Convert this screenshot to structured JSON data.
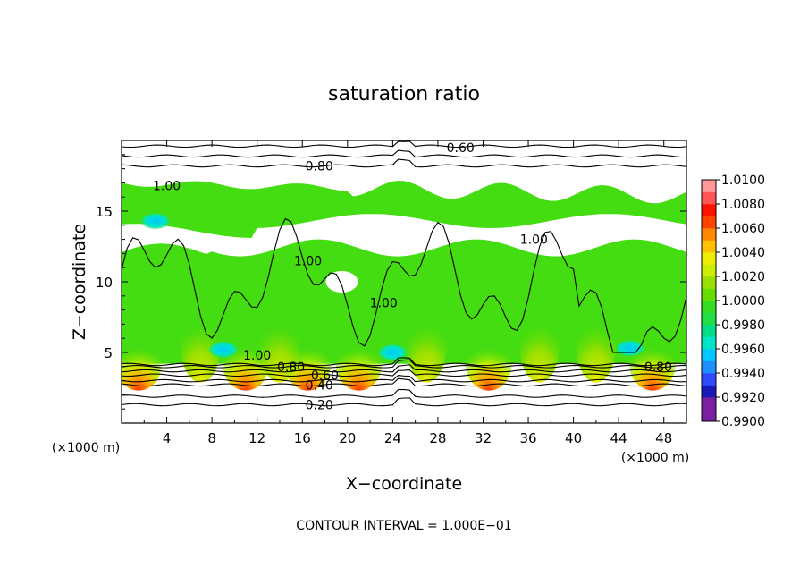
{
  "chart_data": {
    "type": "heatmap",
    "title": "saturation ratio",
    "xlabel": "X−coordinate",
    "ylabel": "Z−coordinate",
    "x_unit": "(×1000 m)",
    "y_unit": "(×1000 m)",
    "xlim": [
      0,
      50
    ],
    "ylim": [
      0,
      20
    ],
    "x_ticks": [
      4,
      8,
      12,
      16,
      20,
      24,
      28,
      32,
      36,
      40,
      44,
      48
    ],
    "y_ticks": [
      5,
      10,
      15
    ],
    "footer": "CONTOUR INTERVAL = 1.000E−01",
    "colorbar": {
      "min": 0.99,
      "max": 1.01,
      "labels": [
        "1.0100",
        "1.0080",
        "1.0060",
        "1.0040",
        "1.0020",
        "1.0000",
        "0.9980",
        "0.9960",
        "0.9940",
        "0.9920",
        "0.9900"
      ],
      "bands": [
        {
          "from": 0.99,
          "to": 0.992,
          "color": "#7a1fa2"
        },
        {
          "from": 0.992,
          "to": 0.993,
          "color": "#1a1ab8"
        },
        {
          "from": 0.993,
          "to": 0.994,
          "color": "#2e4bff"
        },
        {
          "from": 0.994,
          "to": 0.995,
          "color": "#1f8fff"
        },
        {
          "from": 0.995,
          "to": 0.996,
          "color": "#00c8ff"
        },
        {
          "from": 0.996,
          "to": 0.997,
          "color": "#00e5c8"
        },
        {
          "from": 0.997,
          "to": 0.998,
          "color": "#00dd88"
        },
        {
          "from": 0.998,
          "to": 0.999,
          "color": "#22dd44"
        },
        {
          "from": 0.999,
          "to": 1.0,
          "color": "#33dd22"
        },
        {
          "from": 1.0,
          "to": 1.001,
          "color": "#66dd00"
        },
        {
          "from": 1.001,
          "to": 1.002,
          "color": "#99e000"
        },
        {
          "from": 1.002,
          "to": 1.003,
          "color": "#ccee00"
        },
        {
          "from": 1.003,
          "to": 1.004,
          "color": "#eeee00"
        },
        {
          "from": 1.004,
          "to": 1.005,
          "color": "#ffc000"
        },
        {
          "from": 1.005,
          "to": 1.006,
          "color": "#ff8800"
        },
        {
          "from": 1.006,
          "to": 1.007,
          "color": "#ff4400"
        },
        {
          "from": 1.007,
          "to": 1.008,
          "color": "#ff1100"
        },
        {
          "from": 1.008,
          "to": 1.009,
          "color": "#ff5555"
        },
        {
          "from": 1.009,
          "to": 1.01,
          "color": "#ff9999"
        }
      ]
    },
    "contour_labels": [
      {
        "text": "0.60",
        "x": 30.0,
        "z": 19.5
      },
      {
        "text": "0.80",
        "x": 17.5,
        "z": 18.2
      },
      {
        "text": "1.00",
        "x": 4.0,
        "z": 16.8
      },
      {
        "text": "1.00",
        "x": 36.5,
        "z": 13.0
      },
      {
        "text": "1.00",
        "x": 16.5,
        "z": 11.5
      },
      {
        "text": "1.00",
        "x": 23.2,
        "z": 8.5
      },
      {
        "text": "1.00",
        "x": 12.0,
        "z": 4.8
      },
      {
        "text": "0.80",
        "x": 15.0,
        "z": 4.0
      },
      {
        "text": "0.60",
        "x": 18.0,
        "z": 3.4
      },
      {
        "text": "0.40",
        "x": 17.5,
        "z": 2.7
      },
      {
        "text": "0.20",
        "x": 17.5,
        "z": 1.3
      },
      {
        "text": "0.80",
        "x": 47.5,
        "z": 4.0
      }
    ],
    "contours": [
      {
        "level": 0.2,
        "z": 1.3
      },
      {
        "level": 0.3,
        "z": 1.9
      },
      {
        "level": 0.4,
        "z": 2.7
      },
      {
        "level": 0.5,
        "z": 3.0
      },
      {
        "level": 0.6,
        "z": 3.4
      },
      {
        "level": 0.7,
        "z": 3.7
      },
      {
        "level": 0.8,
        "z": 4.0
      },
      {
        "level": 0.9,
        "z": 4.15
      },
      {
        "level": 0.8,
        "z": 18.2
      },
      {
        "level": 0.7,
        "z": 18.9
      },
      {
        "level": 0.6,
        "z": 19.6
      }
    ],
    "moist_layer": {
      "z_bottom": 4.2,
      "z_top": 17.0
    },
    "dry_band": {
      "z_bottom": 12.4,
      "z_top": 14.0
    }
  }
}
